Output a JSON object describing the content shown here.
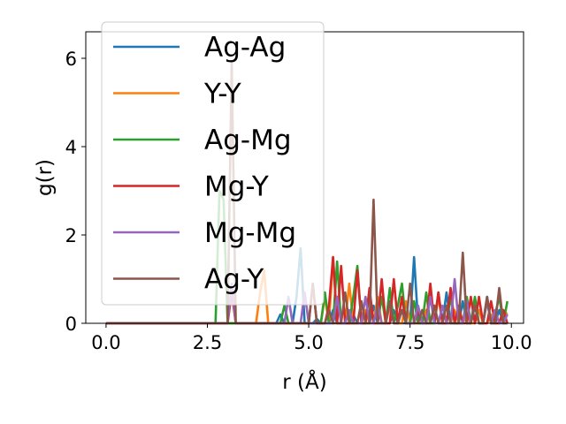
{
  "chart_data": {
    "type": "line",
    "xlabel": "r (Å)",
    "ylabel": "g(r)",
    "xlim": [
      -0.5,
      10.3
    ],
    "ylim": [
      0,
      6.6
    ],
    "xticks": [
      0.0,
      2.5,
      5.0,
      7.5,
      10.0
    ],
    "xtick_labels": [
      "0.0",
      "2.5",
      "5.0",
      "7.5",
      "10.0"
    ],
    "yticks": [
      0,
      2,
      4,
      6
    ],
    "ytick_labels": [
      "0",
      "2",
      "4",
      "6"
    ],
    "grid": false,
    "legend_position": "upper left",
    "series": [
      {
        "name": "Ag-Ag",
        "color": "#1f77b4",
        "x": [
          0,
          4.2,
          4.3,
          4.4,
          4.5,
          4.6,
          4.7,
          4.8,
          4.9,
          5.0,
          5.1,
          5.2,
          5.3,
          5.4,
          5.5,
          5.6,
          5.7,
          5.8,
          5.9,
          6.0,
          6.1,
          6.2,
          6.3,
          6.4,
          6.5,
          6.6,
          6.7,
          6.8,
          6.9,
          7.0,
          7.1,
          7.2,
          7.3,
          7.4,
          7.5,
          7.6,
          7.7,
          7.8,
          7.9,
          8.0,
          8.1,
          8.2,
          8.3,
          8.4,
          8.5,
          8.6,
          8.7,
          8.8,
          8.9,
          9.0,
          9.1,
          9.2,
          9.3,
          9.4,
          9.5,
          9.6,
          9.7,
          9.8,
          9.9
        ],
        "y": [
          0,
          0,
          0.2,
          0,
          0,
          0,
          0.6,
          1.7,
          0,
          0,
          0,
          0.1,
          0,
          0,
          0,
          0.3,
          0,
          0,
          0,
          0,
          0.2,
          0,
          0,
          0,
          0,
          0.4,
          0,
          0,
          0,
          0,
          0.3,
          0,
          0,
          0,
          0,
          1.5,
          0,
          0,
          0,
          0,
          0.4,
          0,
          0,
          0.7,
          0,
          0,
          0,
          0.5,
          0,
          0,
          0.4,
          0,
          0,
          0.6,
          0,
          0,
          0.3,
          0,
          0
        ]
      },
      {
        "name": "Y-Y",
        "color": "#ff7f0e",
        "x": [
          0,
          3.7,
          3.8,
          3.9,
          4.0,
          4.1,
          4.2,
          4.3,
          4.4,
          4.5,
          4.6,
          4.7,
          4.8,
          4.9,
          5.0,
          5.1,
          5.2,
          5.3,
          5.4,
          5.5,
          5.6,
          5.7,
          5.8,
          5.9,
          6.0,
          6.1,
          6.2,
          6.3,
          6.4,
          6.5,
          6.6,
          6.7,
          6.8,
          6.9,
          7.0,
          7.1,
          7.2,
          7.3,
          7.4,
          7.5,
          7.6,
          7.7,
          7.8,
          7.9,
          8.0,
          8.1,
          8.2,
          8.3,
          8.4,
          8.5,
          8.6,
          8.7,
          8.8,
          8.9,
          9.0,
          9.1,
          9.2,
          9.3,
          9.4,
          9.5,
          9.6,
          9.7,
          9.8,
          9.9
        ],
        "y": [
          0,
          0,
          0.7,
          1.2,
          0,
          0,
          0,
          0,
          0,
          0,
          0,
          0,
          0,
          0,
          0,
          0,
          0,
          0,
          0.6,
          0,
          1.5,
          0,
          0,
          0,
          0.9,
          0,
          0,
          0,
          0.3,
          0,
          0,
          0.6,
          0,
          0,
          0.4,
          0,
          0,
          0,
          0.5,
          0,
          0,
          0,
          0,
          0.3,
          0,
          0,
          0.6,
          0,
          0,
          0,
          0.3,
          0,
          0,
          0.2,
          0,
          0,
          0.3,
          0,
          0,
          0.2,
          0,
          0,
          0.3,
          0.2
        ]
      },
      {
        "name": "Ag-Mg",
        "color": "#2ca02c",
        "x": [
          0,
          2.7,
          2.8,
          2.9,
          3.0,
          3.1,
          3.2,
          3.3,
          3.4,
          3.5,
          3.6,
          3.7,
          3.8,
          3.9,
          4.0,
          4.1,
          4.2,
          4.3,
          4.4,
          4.5,
          4.6,
          4.7,
          4.8,
          4.9,
          5.0,
          5.1,
          5.2,
          5.3,
          5.4,
          5.5,
          5.6,
          5.7,
          5.8,
          5.9,
          6.0,
          6.1,
          6.2,
          6.3,
          6.4,
          6.5,
          6.6,
          6.7,
          6.8,
          6.9,
          7.0,
          7.1,
          7.2,
          7.3,
          7.4,
          7.5,
          7.6,
          7.7,
          7.8,
          7.9,
          8.0,
          8.1,
          8.2,
          8.3,
          8.4,
          8.5,
          8.6,
          8.7,
          8.8,
          8.9,
          9.0,
          9.1,
          9.2,
          9.3,
          9.4,
          9.5,
          9.6,
          9.7,
          9.8,
          9.9
        ],
        "y": [
          0,
          0,
          3.0,
          2.8,
          0,
          0,
          0,
          0,
          0,
          0,
          0,
          0,
          0,
          0,
          0,
          0,
          0,
          0,
          0.4,
          0,
          0,
          0,
          0,
          0,
          0,
          0,
          0,
          0,
          0.7,
          0,
          0,
          1.4,
          0,
          0,
          0,
          0.6,
          1.3,
          0,
          0,
          0.7,
          0,
          0,
          0.6,
          0,
          0.8,
          0,
          0.4,
          0.9,
          0,
          0,
          0.5,
          0,
          0,
          0.7,
          0,
          0,
          0.7,
          0,
          0,
          0.6,
          0,
          0,
          0,
          0.6,
          0,
          0.6,
          0,
          0,
          0.5,
          0,
          0.2,
          0.6,
          0,
          0.5
        ]
      },
      {
        "name": "Mg-Y",
        "color": "#d62728",
        "x": [
          0,
          3.0,
          3.1,
          3.2,
          3.3,
          3.4,
          3.5,
          3.6,
          3.7,
          3.8,
          3.9,
          4.0,
          4.1,
          4.2,
          4.3,
          4.4,
          4.5,
          4.6,
          4.7,
          4.8,
          4.9,
          5.0,
          5.1,
          5.2,
          5.3,
          5.4,
          5.5,
          5.6,
          5.7,
          5.8,
          5.9,
          6.0,
          6.1,
          6.2,
          6.3,
          6.4,
          6.5,
          6.6,
          6.7,
          6.8,
          6.9,
          7.0,
          7.1,
          7.2,
          7.3,
          7.4,
          7.5,
          7.6,
          7.7,
          7.8,
          7.9,
          8.0,
          8.1,
          8.2,
          8.3,
          8.4,
          8.5,
          8.6,
          8.7,
          8.8,
          8.9,
          9.0,
          9.1,
          9.2,
          9.3,
          9.4,
          9.5,
          9.6,
          9.7,
          9.8,
          9.9
        ],
        "y": [
          0,
          0,
          0.7,
          0,
          0,
          0,
          0,
          0,
          0,
          0,
          0,
          0,
          0,
          0,
          0,
          0,
          0,
          0,
          0,
          0,
          0,
          0,
          0.9,
          0,
          0,
          0,
          0.4,
          1.5,
          0,
          1.3,
          0,
          0,
          0,
          1.2,
          0,
          0,
          0.8,
          0,
          0,
          1.0,
          0,
          0,
          1.0,
          0,
          0.6,
          0,
          0,
          0,
          0.3,
          0,
          0,
          0.9,
          0,
          0.7,
          0,
          0,
          0.8,
          0,
          0.4,
          0,
          0,
          0.6,
          0,
          0.6,
          0,
          0,
          0.5,
          0,
          0,
          0.3,
          0
        ]
      },
      {
        "name": "Mg-Mg",
        "color": "#9467bd",
        "x": [
          0,
          3.0,
          3.1,
          3.2,
          3.3,
          3.4,
          3.5,
          3.6,
          3.7,
          3.8,
          3.9,
          4.0,
          4.1,
          4.2,
          4.3,
          4.4,
          4.5,
          4.6,
          4.7,
          4.8,
          4.9,
          5.0,
          5.1,
          5.2,
          5.3,
          5.4,
          5.5,
          5.6,
          5.7,
          5.8,
          5.9,
          6.0,
          6.1,
          6.2,
          6.3,
          6.4,
          6.5,
          6.6,
          6.7,
          6.8,
          6.9,
          7.0,
          7.1,
          7.2,
          7.3,
          7.4,
          7.5,
          7.6,
          7.7,
          7.8,
          7.9,
          8.0,
          8.1,
          8.2,
          8.3,
          8.4,
          8.5,
          8.6,
          8.7,
          8.8,
          8.9,
          9.0,
          9.1,
          9.2,
          9.3,
          9.4,
          9.5,
          9.6,
          9.7,
          9.8,
          9.9
        ],
        "y": [
          0,
          0,
          0.9,
          0,
          0,
          0,
          0,
          0,
          0,
          0,
          0,
          0,
          0,
          0,
          0,
          0,
          0.6,
          0,
          0,
          0,
          0.7,
          0,
          0,
          0,
          0,
          0,
          0,
          0,
          0.6,
          0,
          0,
          0.3,
          0,
          0,
          0,
          0.6,
          0,
          0,
          0.4,
          0,
          0,
          0.5,
          0,
          0,
          0.3,
          0,
          0,
          0,
          0.4,
          0,
          0,
          0.6,
          0,
          0,
          0.4,
          0,
          0,
          1.0,
          0,
          0,
          0.5,
          0,
          0.4,
          0,
          0,
          0.5,
          0,
          0.3,
          0,
          0,
          0.2
        ]
      },
      {
        "name": "Ag-Y",
        "color": "#8c564b",
        "x": [
          0,
          3.0,
          3.1,
          3.2,
          3.3,
          3.4,
          3.5,
          3.6,
          3.7,
          3.8,
          3.9,
          4.0,
          4.1,
          4.2,
          4.3,
          4.4,
          4.5,
          4.6,
          4.7,
          4.8,
          4.9,
          5.0,
          5.1,
          5.2,
          5.3,
          5.4,
          5.5,
          5.6,
          5.7,
          5.8,
          5.9,
          6.0,
          6.1,
          6.2,
          6.3,
          6.4,
          6.5,
          6.6,
          6.7,
          6.8,
          6.9,
          7.0,
          7.1,
          7.2,
          7.3,
          7.4,
          7.5,
          7.6,
          7.7,
          7.8,
          7.9,
          8.0,
          8.1,
          8.2,
          8.3,
          8.4,
          8.5,
          8.6,
          8.7,
          8.8,
          8.9,
          9.0,
          9.1,
          9.2,
          9.3,
          9.4,
          9.5,
          9.6,
          9.7,
          9.8,
          9.9
        ],
        "y": [
          0,
          0,
          5.9,
          0,
          0,
          0,
          0,
          0,
          0,
          0,
          0,
          0,
          0,
          0,
          0,
          0,
          0,
          0,
          0,
          0,
          0,
          0,
          0.9,
          0,
          0,
          0,
          0.3,
          0,
          0,
          0,
          0.7,
          0,
          0,
          0,
          0.5,
          0,
          0,
          2.8,
          0,
          0,
          0,
          0.5,
          0,
          0,
          0.3,
          0,
          0.9,
          0,
          0,
          0.3,
          0,
          0,
          0.4,
          0,
          0,
          0.4,
          0,
          0,
          0,
          1.6,
          0,
          0,
          0.4,
          0,
          0,
          0.6,
          0,
          0,
          0.8,
          0,
          0
        ]
      }
    ]
  }
}
